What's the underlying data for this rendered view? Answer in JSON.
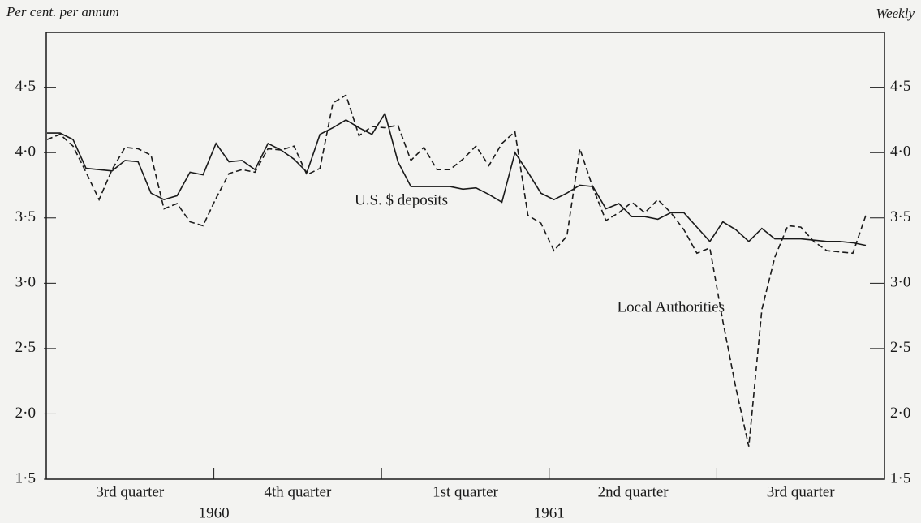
{
  "chart_data": {
    "type": "line",
    "y_axis_label": "Per cent. per annum",
    "frequency_label": "Weekly",
    "categories": [
      null,
      null,
      null,
      null,
      null,
      null,
      null,
      null,
      null,
      null,
      null,
      null,
      null,
      null,
      null,
      null,
      null,
      null,
      null,
      null,
      null,
      null,
      null,
      null,
      null,
      null,
      null,
      null,
      null,
      null,
      null,
      null,
      null,
      null,
      null,
      null,
      null,
      null,
      null,
      null,
      null,
      null,
      null,
      null,
      null,
      null,
      null,
      null,
      null,
      null,
      null,
      null,
      null,
      null,
      null,
      null,
      null,
      null,
      null,
      null,
      null,
      null,
      null,
      null
    ],
    "quarters": [
      "3rd quarter",
      "4th quarter",
      "1st quarter",
      "2nd quarter",
      "3rd quarter"
    ],
    "years": [
      "1960",
      "1961"
    ],
    "series": [
      {
        "name": "U.S. $ deposits",
        "color": "#1a1a1a",
        "style": "solid",
        "values": [
          4.15,
          4.15,
          4.1,
          3.88,
          3.87,
          3.86,
          3.94,
          3.93,
          3.69,
          3.64,
          3.67,
          3.85,
          3.83,
          4.07,
          3.93,
          3.94,
          3.87,
          4.07,
          4.02,
          3.95,
          3.85,
          4.14,
          4.19,
          4.25,
          4.19,
          4.14,
          4.3,
          3.93,
          3.74,
          3.74,
          3.74,
          3.74,
          3.72,
          3.73,
          3.68,
          3.62,
          4.0,
          3.85,
          3.69,
          3.64,
          3.69,
          3.75,
          3.74,
          3.57,
          3.61,
          3.51,
          3.51,
          3.49,
          3.54,
          3.54,
          3.43,
          3.32,
          3.47,
          3.41,
          3.32,
          3.42,
          3.34,
          3.34,
          3.34,
          3.33,
          3.32,
          3.32,
          3.31,
          3.29
        ]
      },
      {
        "name": "Local Authorities",
        "color": "#1a1a1a",
        "style": "dashed",
        "values": [
          4.1,
          4.14,
          4.05,
          3.85,
          3.64,
          3.87,
          4.04,
          4.03,
          3.98,
          3.57,
          3.61,
          3.47,
          3.44,
          3.65,
          3.84,
          3.87,
          3.85,
          4.03,
          4.02,
          4.05,
          3.83,
          3.88,
          4.38,
          4.44,
          4.13,
          4.2,
          4.19,
          4.21,
          3.94,
          4.04,
          3.87,
          3.87,
          3.95,
          4.05,
          3.9,
          4.07,
          4.16,
          3.52,
          3.46,
          3.25,
          3.36,
          4.03,
          3.73,
          3.48,
          3.54,
          3.62,
          3.54,
          3.64,
          3.54,
          3.41,
          3.23,
          3.27,
          2.71,
          2.2,
          1.75,
          2.8,
          3.2,
          3.44,
          3.43,
          3.32,
          3.25,
          3.24,
          3.23,
          3.52
        ]
      }
    ],
    "ylim": [
      1.5,
      4.92
    ],
    "yticks": [
      {
        "value": 1.5,
        "label": "1·5"
      },
      {
        "value": 2.0,
        "label": "2·0"
      },
      {
        "value": 2.5,
        "label": "2·5"
      },
      {
        "value": 3.0,
        "label": "3·0"
      },
      {
        "value": 3.5,
        "label": "3·5"
      },
      {
        "value": 4.0,
        "label": "4·0"
      },
      {
        "value": 4.5,
        "label": "4·5"
      }
    ],
    "grid": false
  }
}
